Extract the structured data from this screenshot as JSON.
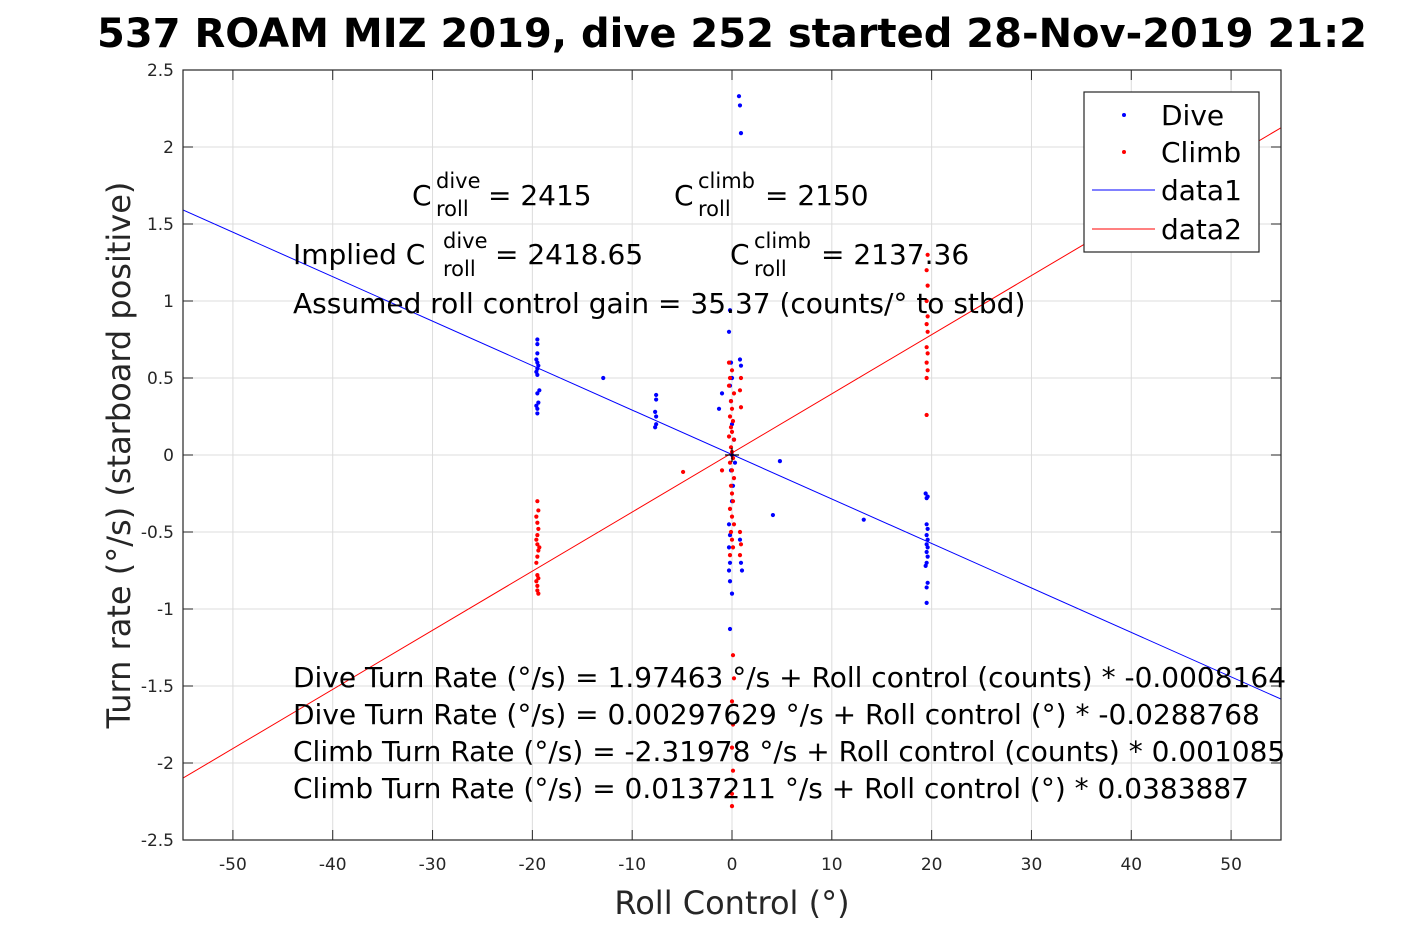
{
  "chart_data": {
    "type": "scatter",
    "title": "537 ROAM MIZ 2019, dive 252 started 28-Nov-2019 21:2",
    "xlabel": "Roll Control (°)",
    "ylabel": "Turn rate (°/s) (starboard positive)",
    "xlim": [
      -55,
      55
    ],
    "ylim": [
      -2.5,
      2.5
    ],
    "xticks": [
      -50,
      -40,
      -30,
      -20,
      -10,
      0,
      10,
      20,
      30,
      40,
      50
    ],
    "yticks": [
      -2.5,
      -2,
      -1.5,
      -1,
      -0.5,
      0,
      0.5,
      1,
      1.5,
      2,
      2.5
    ],
    "xtick_labels": [
      "-50",
      "-40",
      "-30",
      "-20",
      "-10",
      "0",
      "10",
      "20",
      "30",
      "40",
      "50"
    ],
    "ytick_labels": [
      "-2.5",
      "-2",
      "-1.5",
      "-1",
      "-0.5",
      "0",
      "0.5",
      "1",
      "1.5",
      "2",
      "2.5"
    ],
    "grid": true,
    "legend_position": "top-right",
    "legend": [
      "Dive",
      "Climb",
      "data1",
      "data2"
    ],
    "series": [
      {
        "name": "Dive",
        "kind": "points",
        "color": "#0000ff",
        "points": [
          [
            -19.5,
            0.75
          ],
          [
            -19.5,
            0.72
          ],
          [
            -19.5,
            0.66
          ],
          [
            -19.6,
            0.62
          ],
          [
            -19.5,
            0.6
          ],
          [
            -19.4,
            0.58
          ],
          [
            -19.5,
            0.56
          ],
          [
            -19.6,
            0.54
          ],
          [
            -19.5,
            0.52
          ],
          [
            -19.3,
            0.42
          ],
          [
            -19.5,
            0.4
          ],
          [
            -19.4,
            0.34
          ],
          [
            -19.6,
            0.32
          ],
          [
            -19.5,
            0.3
          ],
          [
            -19.5,
            0.27
          ],
          [
            -12.9,
            0.5
          ],
          [
            -7.6,
            0.39
          ],
          [
            -7.6,
            0.36
          ],
          [
            -7.7,
            0.28
          ],
          [
            -7.6,
            0.25
          ],
          [
            -7.6,
            0.2
          ],
          [
            -7.7,
            0.18
          ],
          [
            -1.0,
            0.4
          ],
          [
            -1.3,
            0.3
          ],
          [
            -0.2,
            0.94
          ],
          [
            -0.3,
            0.8
          ],
          [
            -0.1,
            0.6
          ],
          [
            0.0,
            0.5
          ],
          [
            -0.2,
            0.45
          ],
          [
            -0.1,
            0.35
          ],
          [
            0.7,
            2.33
          ],
          [
            0.8,
            2.27
          ],
          [
            0.9,
            2.09
          ],
          [
            0.8,
            0.62
          ],
          [
            0.9,
            0.58
          ],
          [
            0.0,
            0.2
          ],
          [
            0.2,
            0.1
          ],
          [
            0.0,
            0.0
          ],
          [
            0.3,
            -0.05
          ],
          [
            -0.1,
            -0.1
          ],
          [
            0.1,
            -0.2
          ],
          [
            0.0,
            -0.3
          ],
          [
            -0.3,
            -0.45
          ],
          [
            -0.2,
            -0.52
          ],
          [
            -0.3,
            -0.6
          ],
          [
            -0.2,
            -0.7
          ],
          [
            -0.3,
            -0.75
          ],
          [
            -0.2,
            -0.82
          ],
          [
            0.0,
            -0.9
          ],
          [
            0.8,
            -0.55
          ],
          [
            0.9,
            -0.7
          ],
          [
            1.0,
            -0.75
          ],
          [
            -0.2,
            -1.13
          ],
          [
            4.1,
            -0.39
          ],
          [
            4.8,
            -0.04
          ],
          [
            13.2,
            -0.42
          ],
          [
            19.4,
            -0.25
          ],
          [
            19.6,
            -0.27
          ],
          [
            19.5,
            -0.28
          ],
          [
            19.5,
            -0.45
          ],
          [
            19.6,
            -0.48
          ],
          [
            19.5,
            -0.52
          ],
          [
            19.6,
            -0.55
          ],
          [
            19.5,
            -0.58
          ],
          [
            19.6,
            -0.6
          ],
          [
            19.5,
            -0.63
          ],
          [
            19.6,
            -0.66
          ],
          [
            19.5,
            -0.7
          ],
          [
            19.4,
            -0.72
          ],
          [
            19.6,
            -0.83
          ],
          [
            19.5,
            -0.86
          ],
          [
            19.5,
            -0.96
          ]
        ]
      },
      {
        "name": "Climb",
        "kind": "points",
        "color": "#ff0000",
        "points": [
          [
            -19.5,
            -0.3
          ],
          [
            -19.4,
            -0.36
          ],
          [
            -19.6,
            -0.4
          ],
          [
            -19.5,
            -0.44
          ],
          [
            -19.4,
            -0.48
          ],
          [
            -19.5,
            -0.52
          ],
          [
            -19.6,
            -0.55
          ],
          [
            -19.5,
            -0.58
          ],
          [
            -19.3,
            -0.6
          ],
          [
            -19.4,
            -0.62
          ],
          [
            -19.5,
            -0.66
          ],
          [
            -19.6,
            -0.7
          ],
          [
            -19.5,
            -0.78
          ],
          [
            -19.4,
            -0.8
          ],
          [
            -19.6,
            -0.82
          ],
          [
            -19.5,
            -0.85
          ],
          [
            -19.5,
            -0.88
          ],
          [
            -19.4,
            -0.9
          ],
          [
            -4.9,
            -0.11
          ],
          [
            -1.0,
            -0.1
          ],
          [
            -0.3,
            0.6
          ],
          [
            0.0,
            0.55
          ],
          [
            -0.2,
            0.5
          ],
          [
            -0.3,
            0.45
          ],
          [
            0.2,
            0.4
          ],
          [
            -0.1,
            0.35
          ],
          [
            0.0,
            0.3
          ],
          [
            -0.2,
            0.25
          ],
          [
            0.1,
            0.22
          ],
          [
            -0.1,
            0.18
          ],
          [
            0.0,
            0.15
          ],
          [
            -0.3,
            0.12
          ],
          [
            0.2,
            0.1
          ],
          [
            -0.1,
            0.05
          ],
          [
            0.0,
            0.02
          ],
          [
            0.1,
            -0.02
          ],
          [
            -0.2,
            -0.05
          ],
          [
            0.0,
            -0.1
          ],
          [
            0.2,
            -0.15
          ],
          [
            -0.1,
            -0.2
          ],
          [
            0.0,
            -0.25
          ],
          [
            0.1,
            -0.3
          ],
          [
            -0.2,
            -0.35
          ],
          [
            0.0,
            -0.4
          ],
          [
            0.2,
            -0.45
          ],
          [
            -0.1,
            -0.5
          ],
          [
            0.0,
            -0.55
          ],
          [
            0.1,
            -0.6
          ],
          [
            -0.2,
            -0.65
          ],
          [
            0.9,
            0.5
          ],
          [
            0.8,
            0.42
          ],
          [
            0.9,
            0.31
          ],
          [
            0.8,
            -0.5
          ],
          [
            0.9,
            -0.58
          ],
          [
            0.8,
            -0.65
          ],
          [
            0.1,
            -1.3
          ],
          [
            0.2,
            -1.45
          ],
          [
            0.0,
            -1.6
          ],
          [
            0.1,
            -1.75
          ],
          [
            0.0,
            -1.9
          ],
          [
            0.1,
            -2.05
          ],
          [
            0.0,
            -2.2
          ],
          [
            0.0,
            -2.28
          ],
          [
            19.6,
            1.3
          ],
          [
            19.5,
            1.2
          ],
          [
            19.6,
            1.1
          ],
          [
            19.5,
            1.0
          ],
          [
            19.6,
            0.9
          ],
          [
            19.5,
            0.85
          ],
          [
            19.6,
            0.8
          ],
          [
            19.5,
            0.7
          ],
          [
            19.6,
            0.66
          ],
          [
            19.5,
            0.6
          ],
          [
            19.6,
            0.55
          ],
          [
            19.5,
            0.5
          ],
          [
            19.5,
            0.26
          ]
        ]
      },
      {
        "name": "data1",
        "kind": "line",
        "color": "#0000ff",
        "points": [
          [
            -55,
            1.591
          ],
          [
            55,
            -1.585
          ]
        ]
      },
      {
        "name": "data2",
        "kind": "line",
        "color": "#ff0000",
        "points": [
          [
            -55,
            -2.098
          ],
          [
            55,
            2.125
          ]
        ]
      }
    ],
    "annotations": {
      "c_dive_line": {
        "prefix": "C",
        "sup": "dive",
        "sub": "roll",
        "suffix": " = 2415"
      },
      "c_climb_line": {
        "prefix": "C",
        "sup": "climb",
        "sub": "roll",
        "suffix": " = 2150"
      },
      "implied_dive": {
        "prefix": "Implied C",
        "sup": "dive",
        "sub": "roll",
        "suffix": " = 2418.65"
      },
      "implied_climb": {
        "prefix": "C",
        "sup": "climb",
        "sub": "roll",
        "suffix": " = 2137.36"
      },
      "gain": "Assumed roll control gain = 35.37 (counts/° to stbd)",
      "fit_lines": [
        "Dive Turn Rate (°/s) = 1.97463 °/s + Roll control (counts) * -0.0008164",
        "Dive Turn Rate (°/s) = 0.00297629 °/s + Roll control (°) * -0.0288768",
        "Climb Turn Rate (°/s) = -2.31978 °/s + Roll control (counts) * 0.001085",
        "Climb Turn Rate (°/s) = 0.0137211 °/s + Roll control (°) * 0.0383887"
      ]
    }
  }
}
